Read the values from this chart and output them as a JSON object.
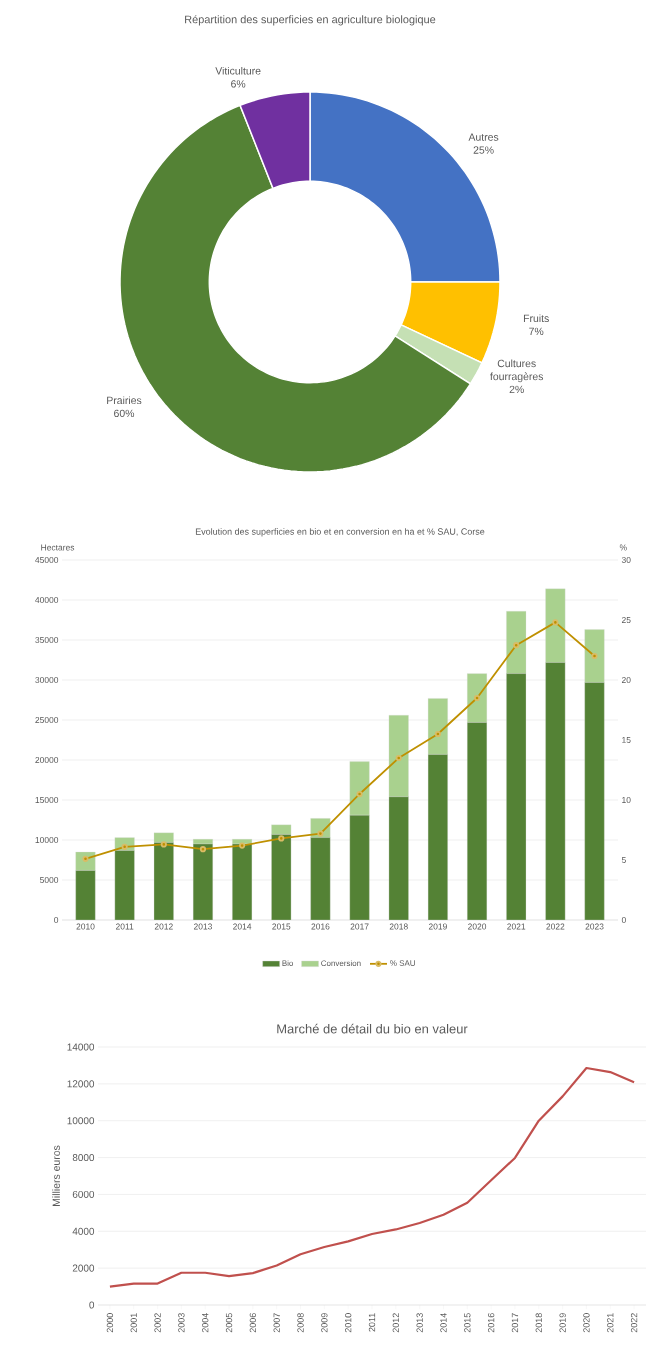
{
  "chart_data": [
    {
      "type": "donut",
      "title": "Répartition des superficies en agriculture biologique",
      "categories": [
        "Autres",
        "Fruits",
        "Cultures fourragères",
        "Prairies",
        "Viticulture"
      ],
      "values": [
        25,
        7,
        2,
        60,
        6
      ],
      "colors": [
        "#4472c4",
        "#ffc000",
        "#c5e0b4",
        "#548235",
        "#7030a0"
      ],
      "value_labels": [
        "25%",
        "7%",
        "2%",
        "60%",
        "6%"
      ]
    },
    {
      "type": "bar",
      "title": "Evolution des superficies en bio et en conversion en ha et % SAU, Corse",
      "ylabel": "Hectares",
      "y2label": "%",
      "categories": [
        "2010",
        "2011",
        "2012",
        "2013",
        "2014",
        "2015",
        "2016",
        "2017",
        "2018",
        "2019",
        "2020",
        "2021",
        "2022",
        "2023"
      ],
      "stacked": true,
      "series": [
        {
          "name": "Bio",
          "color": "#548235",
          "values": [
            6200,
            8700,
            9700,
            9500,
            9500,
            10700,
            10300,
            13100,
            15400,
            20700,
            24700,
            30800,
            32200,
            29700
          ]
        },
        {
          "name": "Conversion",
          "color": "#a9d18e",
          "values": [
            2300,
            1600,
            1200,
            600,
            600,
            1200,
            2400,
            6700,
            10200,
            7000,
            6100,
            7800,
            9200,
            6600
          ]
        },
        {
          "name": "% SAU",
          "type": "line",
          "axis": "y2",
          "marker": "circle",
          "color": "#bf9000",
          "values": [
            5.1,
            6.1,
            6.3,
            5.9,
            6.2,
            6.8,
            7.2,
            10.5,
            13.5,
            15.5,
            18.5,
            22.9,
            24.8,
            22.0
          ]
        }
      ],
      "ylim": [
        0,
        45000
      ],
      "yticks": [
        0,
        5000,
        10000,
        15000,
        20000,
        25000,
        30000,
        35000,
        40000,
        45000
      ],
      "y2lim": [
        0,
        30
      ],
      "y2ticks": [
        0,
        5,
        10,
        15,
        20,
        25,
        30
      ],
      "grid": "y",
      "legend": "bottom"
    },
    {
      "type": "line",
      "title": "Marché de détail du bio en valeur",
      "ylabel": "Milliers euros",
      "categories": [
        "2000",
        "2001",
        "2002",
        "2003",
        "2004",
        "2005",
        "2006",
        "2007",
        "2008",
        "2009",
        "2010",
        "2011",
        "2012",
        "2013",
        "2014",
        "2015",
        "2016",
        "2017",
        "2018",
        "2019",
        "2020",
        "2021",
        "2022"
      ],
      "values": [
        1000,
        1160,
        1160,
        1750,
        1750,
        1570,
        1730,
        2140,
        2750,
        3150,
        3450,
        3850,
        4100,
        4450,
        4900,
        5550,
        6770,
        7980,
        10000,
        11320,
        12860,
        12640,
        12090
      ],
      "color": "#c0504d",
      "ylim": [
        0,
        14000
      ],
      "yticks": [
        0,
        2000,
        4000,
        6000,
        8000,
        10000,
        12000,
        14000
      ],
      "grid": "y"
    }
  ]
}
